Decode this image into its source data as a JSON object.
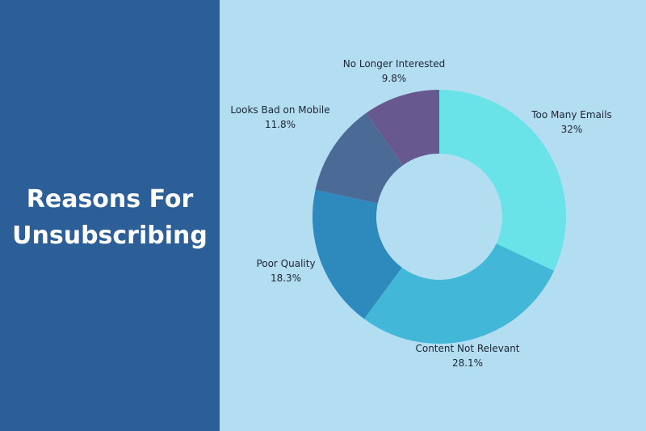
{
  "panel": {
    "title_line1": "Reasons For",
    "title_line2": "Unsubscribing"
  },
  "colors": {
    "left_background": "#2c5f98",
    "right_background": "#b3def2"
  },
  "chart_data": {
    "type": "pie",
    "style": "donut",
    "start_angle_deg": 0,
    "direction": "clockwise",
    "slices": [
      {
        "label": "Too Many Emails",
        "value": 32,
        "display": "32%",
        "color": "#6ae3e8"
      },
      {
        "label": "Content Not Relevant",
        "value": 28.1,
        "display": "28.1%",
        "color": "#42b7d8"
      },
      {
        "label": "Poor Quality",
        "value": 18.3,
        "display": "18.3%",
        "color": "#2e89bc"
      },
      {
        "label": "Looks Bad on Mobile",
        "value": 11.8,
        "display": "11.8%",
        "color": "#4b6b96"
      },
      {
        "label": "No Longer Interested",
        "value": 9.8,
        "display": "9.8%",
        "color": "#67598f"
      }
    ]
  }
}
